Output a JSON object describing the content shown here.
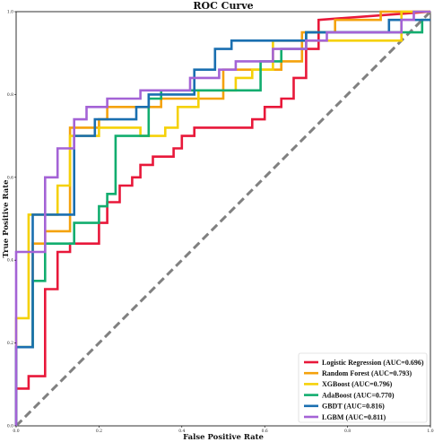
{
  "chart_data": {
    "type": "line",
    "title": "ROC Curve",
    "xlabel": "False Positive Rate",
    "ylabel": "True Positive Rate",
    "xlim": [
      0,
      1
    ],
    "ylim": [
      0,
      1
    ],
    "xticks": [
      "0.0",
      "0.2",
      "0.4",
      "0.6",
      "0.8",
      "1.0"
    ],
    "yticks": [
      "0.0",
      "0.2",
      "0.4",
      "0.6",
      "0.8",
      "1.0"
    ],
    "grid": false,
    "legend_position": "lower-right",
    "diagonal": {
      "x": [
        0,
        1
      ],
      "y": [
        0,
        1
      ],
      "color": "#808080",
      "style": "dashed"
    },
    "series": [
      {
        "name": "Logistic Regression (AUC=0.696)",
        "color": "#e8183a",
        "x": [
          0,
          0,
          0.03,
          0.03,
          0.07,
          0.07,
          0.1,
          0.1,
          0.13,
          0.13,
          0.2,
          0.2,
          0.22,
          0.22,
          0.25,
          0.25,
          0.28,
          0.28,
          0.3,
          0.3,
          0.33,
          0.33,
          0.38,
          0.38,
          0.4,
          0.4,
          0.43,
          0.43,
          0.46,
          0.46,
          0.57,
          0.57,
          0.6,
          0.6,
          0.64,
          0.64,
          0.67,
          0.67,
          0.7,
          0.7,
          0.73,
          0.73,
          1
        ],
        "y": [
          0,
          0.09,
          0.09,
          0.12,
          0.12,
          0.33,
          0.33,
          0.42,
          0.42,
          0.44,
          0.44,
          0.49,
          0.49,
          0.54,
          0.54,
          0.58,
          0.58,
          0.6,
          0.6,
          0.63,
          0.63,
          0.65,
          0.65,
          0.67,
          0.67,
          0.7,
          0.7,
          0.72,
          0.72,
          0.72,
          0.72,
          0.74,
          0.74,
          0.77,
          0.77,
          0.79,
          0.79,
          0.84,
          0.84,
          0.91,
          0.91,
          0.98,
          1.0
        ]
      },
      {
        "name": "Random Forest (AUC=0.793)",
        "color": "#f4a20c",
        "x": [
          0,
          0,
          0.04,
          0.04,
          0.07,
          0.07,
          0.13,
          0.13,
          0.2,
          0.2,
          0.22,
          0.22,
          0.35,
          0.35,
          0.5,
          0.5,
          0.64,
          0.64,
          0.69,
          0.69,
          0.74,
          0.74,
          0.77,
          0.77,
          0.88,
          0.88,
          1
        ],
        "y": [
          0,
          0.19,
          0.19,
          0.44,
          0.44,
          0.47,
          0.47,
          0.72,
          0.72,
          0.74,
          0.74,
          0.77,
          0.77,
          0.79,
          0.79,
          0.86,
          0.86,
          0.88,
          0.88,
          0.95,
          0.95,
          0.95,
          0.95,
          0.98,
          0.98,
          1.0,
          1.0
        ]
      },
      {
        "name": "XGBoost (AUC=0.796)",
        "color": "#f5d108",
        "x": [
          0,
          0,
          0.03,
          0.03,
          0.1,
          0.1,
          0.13,
          0.13,
          0.2,
          0.2,
          0.3,
          0.3,
          0.36,
          0.36,
          0.39,
          0.39,
          0.44,
          0.44,
          0.53,
          0.53,
          0.57,
          0.57,
          0.62,
          0.62,
          0.93,
          0.93,
          1
        ],
        "y": [
          0,
          0.26,
          0.26,
          0.51,
          0.51,
          0.58,
          0.58,
          0.7,
          0.7,
          0.72,
          0.72,
          0.7,
          0.7,
          0.72,
          0.72,
          0.77,
          0.77,
          0.81,
          0.81,
          0.84,
          0.84,
          0.86,
          0.86,
          0.93,
          0.93,
          1.0,
          1.0
        ]
      },
      {
        "name": "AdaBoost (AUC=0.770)",
        "color": "#12ad6f",
        "x": [
          0,
          0,
          0.04,
          0.04,
          0.07,
          0.07,
          0.14,
          0.14,
          0.2,
          0.2,
          0.22,
          0.22,
          0.24,
          0.24,
          0.32,
          0.32,
          0.35,
          0.35,
          0.59,
          0.59,
          0.64,
          0.64,
          0.7,
          0.7,
          0.98,
          0.98,
          1
        ],
        "y": [
          0,
          0.19,
          0.19,
          0.35,
          0.35,
          0.44,
          0.44,
          0.49,
          0.49,
          0.53,
          0.53,
          0.56,
          0.56,
          0.7,
          0.7,
          0.79,
          0.79,
          0.81,
          0.81,
          0.88,
          0.88,
          0.91,
          0.91,
          0.95,
          0.95,
          0.98,
          0.98
        ]
      },
      {
        "name": "GBDT (AUC=0.816)",
        "color": "#1a6fb0",
        "x": [
          0,
          0,
          0.04,
          0.04,
          0.14,
          0.14,
          0.19,
          0.19,
          0.29,
          0.29,
          0.32,
          0.32,
          0.43,
          0.43,
          0.48,
          0.48,
          0.52,
          0.52,
          0.7,
          0.7,
          0.9,
          0.9,
          1
        ],
        "y": [
          0,
          0.19,
          0.19,
          0.51,
          0.51,
          0.7,
          0.7,
          0.74,
          0.74,
          0.77,
          0.77,
          0.8,
          0.8,
          0.86,
          0.86,
          0.91,
          0.91,
          0.93,
          0.93,
          0.95,
          0.95,
          0.98,
          0.98
        ]
      },
      {
        "name": "LGBM (AUC=0.811)",
        "color": "#a463d6",
        "x": [
          0,
          0,
          0.07,
          0.07,
          0.1,
          0.1,
          0.14,
          0.14,
          0.17,
          0.17,
          0.22,
          0.22,
          0.3,
          0.3,
          0.42,
          0.42,
          0.49,
          0.49,
          0.53,
          0.53,
          0.62,
          0.62,
          0.7,
          0.7,
          0.75,
          0.75,
          0.93,
          0.93,
          0.96,
          0.96,
          1
        ],
        "y": [
          0,
          0.42,
          0.42,
          0.6,
          0.6,
          0.67,
          0.67,
          0.74,
          0.74,
          0.77,
          0.77,
          0.79,
          0.79,
          0.81,
          0.81,
          0.84,
          0.84,
          0.86,
          0.86,
          0.88,
          0.88,
          0.91,
          0.91,
          0.93,
          0.93,
          0.95,
          0.95,
          0.98,
          0.98,
          1.0,
          1.0
        ]
      }
    ]
  }
}
